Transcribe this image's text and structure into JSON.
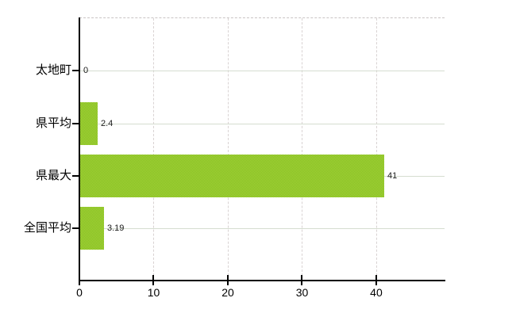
{
  "chart_data": {
    "type": "bar",
    "orientation": "horizontal",
    "title": "",
    "xlabel": "",
    "ylabel": "",
    "categories": [
      "太地町",
      "県平均",
      "県最大",
      "全国平均"
    ],
    "values": [
      0,
      2.4,
      41,
      3.19
    ],
    "value_labels": [
      "0",
      "2.4",
      "41",
      "3.19"
    ],
    "x_ticks": [
      0,
      10,
      20,
      30,
      40
    ],
    "x_tick_labels": [
      "0",
      "10",
      "20",
      "30",
      "40"
    ],
    "xlim": [
      0,
      49.2
    ],
    "grid": "on",
    "legend": "none"
  },
  "colors": {
    "background": "#ffffff",
    "bar_fill": "#96c82d",
    "bar_dither_light": "#a6cf3e",
    "bar_dither_dark": "#83c21d",
    "h_gridline": "#d5ddd0",
    "v_gridline": "#d9d3d3",
    "plot_top_border": "#c9c4c4",
    "axis": "#000000",
    "text": "#000000",
    "value_text": "#1a1a1a"
  }
}
